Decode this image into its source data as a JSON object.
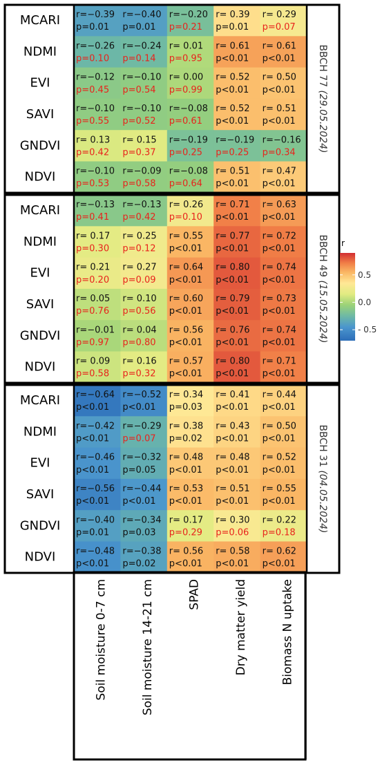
{
  "chart_data": {
    "type": "heatmap",
    "legend_title": "r",
    "legend_range": [
      -0.7,
      0.9
    ],
    "legend_ticks": [
      {
        "value": 0.5,
        "label": "0.5"
      },
      {
        "value": 0.0,
        "label": "0.0"
      },
      {
        "value": -0.5,
        "label": "- 0.5"
      }
    ],
    "columns": [
      "Soil moisture 0-7 cm",
      "Soil moisture 14-21 cm",
      "SPAD",
      "Dry matter yield",
      "Biomass N uptake"
    ],
    "rows": [
      "MCARI",
      "NDMI",
      "EVI",
      "SAVI",
      "GNDVI",
      "NDVI"
    ],
    "colors": {
      "significant": "#111111",
      "not_significant": "#e8231c"
    },
    "panels": [
      {
        "stage": "BBCH 77",
        "date": "(29.05.2024)",
        "r_text": [
          [
            "r=−0.39",
            "r=−0.40",
            "r=−0.20",
            "r= 0.39",
            "r= 0.29"
          ],
          [
            "r=−0.26",
            "r=−0.24",
            "r= 0.01",
            "r= 0.61",
            "r= 0.61"
          ],
          [
            "r=−0.12",
            "r=−0.10",
            "r= 0.00",
            "r= 0.52",
            "r= 0.50"
          ],
          [
            "r=−0.10",
            "r=−0.10",
            "r=−0.08",
            "r= 0.52",
            "r= 0.51"
          ],
          [
            "r= 0.13",
            "r= 0.15",
            "r=−0.19",
            "r=−0.19",
            "r=−0.16"
          ],
          [
            "r=−0.10",
            "r=−0.09",
            "r=−0.08",
            "r= 0.51",
            "r= 0.47"
          ]
        ],
        "r": [
          [
            -0.39,
            -0.4,
            -0.2,
            0.39,
            0.29
          ],
          [
            -0.26,
            -0.24,
            0.01,
            0.61,
            0.61
          ],
          [
            -0.12,
            -0.1,
            0.0,
            0.52,
            0.5
          ],
          [
            -0.1,
            -0.1,
            -0.08,
            0.52,
            0.51
          ],
          [
            0.13,
            0.15,
            -0.19,
            -0.19,
            -0.16
          ],
          [
            -0.1,
            -0.09,
            -0.08,
            0.51,
            0.47
          ]
        ],
        "p": [
          [
            "p=0.01",
            "p=0.01",
            "p=0.21",
            "p=0.01",
            "p=0.07"
          ],
          [
            "p=0.10",
            "p=0.14",
            "p=0.95",
            "p<0.01",
            "p<0.01"
          ],
          [
            "p=0.45",
            "p=0.54",
            "p=0.99",
            "p<0.01",
            "p<0.01"
          ],
          [
            "p=0.55",
            "p=0.52",
            "p=0.61",
            "p<0.01",
            "p<0.01"
          ],
          [
            "p=0.42",
            "p=0.37",
            "p=0.25",
            "p=0.25",
            "p=0.34"
          ],
          [
            "p=0.53",
            "p=0.58",
            "p=0.64",
            "p<0.01",
            "p<0.01"
          ]
        ]
      },
      {
        "stage": "BBCH 49",
        "date": "(15.05.2024)",
        "r_text": [
          [
            "r=−0.13",
            "r=−0.13",
            "r= 0.26",
            "r= 0.71",
            "r= 0.63"
          ],
          [
            "r= 0.17",
            "r= 0.25",
            "r= 0.55",
            "r= 0.77",
            "r= 0.72"
          ],
          [
            "r= 0.21",
            "r= 0.27",
            "r= 0.64",
            "r= 0.80",
            "r= 0.74"
          ],
          [
            "r= 0.05",
            "r= 0.10",
            "r= 0.60",
            "r= 0.79",
            "r= 0.73"
          ],
          [
            "r=−0.01",
            "r= 0.04",
            "r= 0.56",
            "r= 0.76",
            "r= 0.74"
          ],
          [
            "r= 0.09",
            "r= 0.16",
            "r= 0.57",
            "r= 0.80",
            "r= 0.71"
          ]
        ],
        "r": [
          [
            -0.13,
            -0.13,
            0.26,
            0.71,
            0.63
          ],
          [
            0.17,
            0.25,
            0.55,
            0.77,
            0.72
          ],
          [
            0.21,
            0.27,
            0.64,
            0.8,
            0.74
          ],
          [
            0.05,
            0.1,
            0.6,
            0.79,
            0.73
          ],
          [
            -0.01,
            0.04,
            0.56,
            0.76,
            0.74
          ],
          [
            0.09,
            0.16,
            0.57,
            0.8,
            0.71
          ]
        ],
        "p": [
          [
            "p=0.41",
            "p=0.42",
            "p=0.10",
            "p<0.01",
            "p<0.01"
          ],
          [
            "p=0.30",
            "p=0.12",
            "p<0.01",
            "p<0.01",
            "p<0.01"
          ],
          [
            "p=0.20",
            "p=0.09",
            "p<0.01",
            "p<0.01",
            "p<0.01"
          ],
          [
            "p=0.76",
            "p=0.56",
            "p<0.01",
            "p<0.01",
            "p<0.01"
          ],
          [
            "p=0.97",
            "p=0.80",
            "p<0.01",
            "p<0.01",
            "p<0.01"
          ],
          [
            "p=0.58",
            "p=0.32",
            "p<0.01",
            "p<0.01",
            "p<0.01"
          ]
        ]
      },
      {
        "stage": "BBCH 31",
        "date": "(04.05.2024)",
        "r_text": [
          [
            "r=−0.64",
            "r=−0.52",
            "r= 0.34",
            "r= 0.41",
            "r= 0.44"
          ],
          [
            "r=−0.42",
            "r=−0.29",
            "r= 0.38",
            "r= 0.43",
            "r= 0.50"
          ],
          [
            "r=−0.46",
            "r=−0.32",
            "r= 0.48",
            "r= 0.48",
            "r= 0.52"
          ],
          [
            "r=−0.56",
            "r=−0.44",
            "r= 0.53",
            "r= 0.51",
            "r= 0.55"
          ],
          [
            "r=−0.40",
            "r=−0.34",
            "r= 0.17",
            "r= 0.30",
            "r= 0.22"
          ],
          [
            "r=−0.48",
            "r=−0.38",
            "r= 0.56",
            "r= 0.58",
            "r= 0.62"
          ]
        ],
        "r": [
          [
            -0.64,
            -0.52,
            0.34,
            0.41,
            0.44
          ],
          [
            -0.42,
            -0.29,
            0.38,
            0.43,
            0.5
          ],
          [
            -0.46,
            -0.32,
            0.48,
            0.48,
            0.52
          ],
          [
            -0.56,
            -0.44,
            0.53,
            0.51,
            0.55
          ],
          [
            -0.4,
            -0.34,
            0.17,
            0.3,
            0.22
          ],
          [
            -0.48,
            -0.38,
            0.56,
            0.58,
            0.62
          ]
        ],
        "p": [
          [
            "p<0.01",
            "p<0.01",
            "p=0.03",
            "p<0.01",
            "p<0.01"
          ],
          [
            "p<0.01",
            "p=0.07",
            "p=0.02",
            "p<0.01",
            "p<0.01"
          ],
          [
            "p<0.01",
            "p=0.05",
            "p<0.01",
            "p<0.01",
            "p<0.01"
          ],
          [
            "p<0.01",
            "p<0.01",
            "p<0.01",
            "p<0.01",
            "p<0.01"
          ],
          [
            "p=0.01",
            "p=0.03",
            "p=0.29",
            "p=0.06",
            "p=0.18"
          ],
          [
            "p<0.01",
            "p=0.02",
            "p<0.01",
            "p<0.01",
            "p<0.01"
          ]
        ]
      }
    ]
  }
}
